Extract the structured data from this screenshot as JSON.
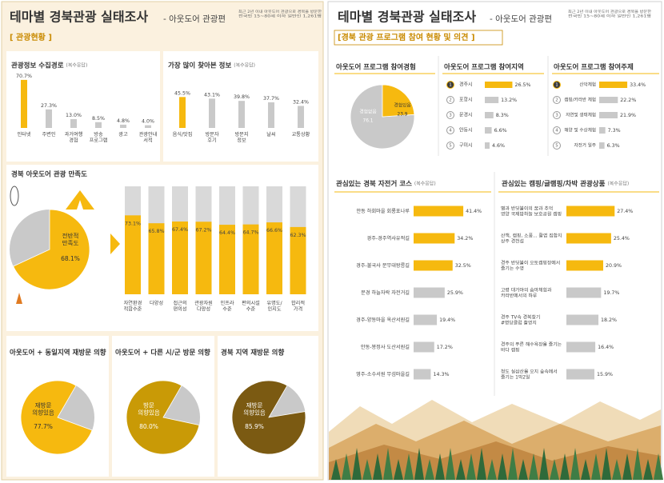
{
  "pages": [
    {
      "title": "테마별 경북관광 실태조사",
      "edition": "- 아웃도어 관광편",
      "note": "최근 2년 이내 아웃도어 관광으로 경북을 방문한\n전국민 15~80세 이하 일반인 1,261명",
      "section": "[ 관광현황 ]"
    },
    {
      "title": "테마별 경북관광 실태조사",
      "edition": "- 아웃도어 관광편",
      "note": "최근 2년 이내 아웃도어 관광으로 경북을 방문한\n전국민 15~80세 이하 일반인 1,261명",
      "section": "[경북 관광 프로그램 참여 현황 및 의견 ]"
    }
  ],
  "chart_data": [
    {
      "type": "bar",
      "title": "관광정보 수집경로",
      "note": "(복수응답)",
      "categories": [
        "인터넷",
        "주변인",
        "과거여행\n경험",
        "방송\n프로그램",
        "광고",
        "관광안내\n서적"
      ],
      "values": [
        70.7,
        27.3,
        13.0,
        8.5,
        4.8,
        4.0
      ],
      "value_labels": [
        "70.7%",
        "27.3%",
        "13.0%",
        "8.5%",
        "4.8%",
        "4.0%"
      ],
      "colors": [
        "#f6b90f",
        "#c9c9c9",
        "#c9c9c9",
        "#c9c9c9",
        "#c9c9c9",
        "#c9c9c9"
      ]
    },
    {
      "type": "bar",
      "title": "가장 많이 찾아본 정보",
      "note": "(복수응답)",
      "categories": [
        "음식/맛집",
        "방문자\n후기",
        "방문지\n정보",
        "날씨",
        "교통상황"
      ],
      "values": [
        45.5,
        43.1,
        39.8,
        37.7,
        32.4
      ],
      "value_labels": [
        "45.5%",
        "43.1%",
        "39.8%",
        "37.7%",
        "32.4%"
      ],
      "colors": [
        "#f6b90f",
        "#c9c9c9",
        "#c9c9c9",
        "#c9c9c9",
        "#c9c9c9"
      ]
    },
    {
      "type": "pie",
      "title": "경북 아웃도어 관광 만족도",
      "categories": [
        "전반적\n만족도"
      ],
      "values": [
        68.1
      ],
      "value_labels": [
        "68.1%"
      ],
      "colors": [
        "#f6b90f"
      ],
      "rest_color": "#c9c9c9"
    },
    {
      "type": "bar",
      "categories": [
        "자연환경\n적합수준",
        "다양성",
        "접근의\n편의성",
        "관광자원\n다양성",
        "인프라\n수준",
        "편의시설\n수준",
        "유명도/\n인지도",
        "합리적\n가격"
      ],
      "values": [
        73.1,
        65.8,
        67.4,
        67.2,
        64.4,
        64.7,
        66.6,
        62.3
      ],
      "value_labels": [
        "73.1%",
        "65.8%",
        "67.4%",
        "67.2%",
        "64.4%",
        "64.7%",
        "66.6%",
        "62.3%"
      ],
      "colors": [
        "#f6b90f",
        "#f6b90f",
        "#f6b90f",
        "#f6b90f",
        "#f6b90f",
        "#f6b90f",
        "#f6b90f",
        "#f6b90f"
      ],
      "background_color": "#d9d9d9"
    },
    {
      "type": "pie",
      "title": "아웃도어 + 동일지역 재방문 의향",
      "categories": [
        "재방문\n의향있음"
      ],
      "values": [
        77.7
      ],
      "value_labels": [
        "77.7%"
      ],
      "colors": [
        "#f6b90f"
      ],
      "rest_color": "#c9c9c9"
    },
    {
      "type": "pie",
      "title": "아웃도어 + 다른 시/군 방문 의향",
      "categories": [
        "방문\n의향있음"
      ],
      "values": [
        80.0
      ],
      "value_labels": [
        "80.0%"
      ],
      "colors": [
        "#c99a06"
      ],
      "rest_color": "#c9c9c9"
    },
    {
      "type": "pie",
      "title": "경북 지역 재방문 의향",
      "categories": [
        "재방문\n의향있음"
      ],
      "values": [
        85.9
      ],
      "value_labels": [
        "85.9%"
      ],
      "colors": [
        "#7b5a12"
      ],
      "rest_color": "#c9c9c9"
    },
    {
      "type": "pie",
      "title": "아웃도어 프로그램 참여경험",
      "categories": [
        "경험없음",
        "경험있음"
      ],
      "values": [
        76.1,
        23.9
      ],
      "colors": [
        "#c9c9c9",
        "#f6b90f"
      ]
    },
    {
      "type": "hbar",
      "title": "아웃도어 프로그램 참여지역",
      "ranks": [
        1,
        2,
        3,
        4,
        5
      ],
      "categories": [
        "경주시",
        "포항시",
        "문경시",
        "안동시",
        "구미시"
      ],
      "values": [
        26.5,
        13.2,
        8.3,
        6.6,
        4.6
      ],
      "value_labels": [
        "26.5%",
        "13.2%",
        "8.3%",
        "6.6%",
        "4.6%"
      ],
      "colors": [
        "#f6b90f",
        "#c9c9c9",
        "#c9c9c9",
        "#c9c9c9",
        "#c9c9c9"
      ]
    },
    {
      "type": "hbar",
      "title": "아웃도어 프로그램 참여주제",
      "ranks": [
        1,
        2,
        3,
        4,
        5
      ],
      "categories": [
        "산악체험",
        "캠핑/카라반 체험",
        "자연및 생태체험",
        "해양 및 수상체험",
        "자전거 일주"
      ],
      "values": [
        33.4,
        22.2,
        21.9,
        7.3,
        6.3
      ],
      "value_labels": [
        "33.4%",
        "22.2%",
        "21.9%",
        "7.3%",
        "6.3%"
      ],
      "colors": [
        "#f6b90f",
        "#c9c9c9",
        "#c9c9c9",
        "#c9c9c9",
        "#c9c9c9"
      ]
    },
    {
      "type": "hbar",
      "title": "관심있는 경북 자전거 코스",
      "note": "(복수응답)",
      "categories": [
        "안동 하회마을 회룡포나루",
        "경주-경주역사유적길",
        "경주-불국사 문무대왕릉길",
        "문경 하늘자락 자전거길",
        "경주-양동마을 옥산서원길",
        "안동-봉정사 도산서원길",
        "영주-소수서원 무섬마을길"
      ],
      "values": [
        41.4,
        34.2,
        32.5,
        25.9,
        19.4,
        17.2,
        14.3
      ],
      "value_labels": [
        "41.4%",
        "34.2%",
        "32.5%",
        "25.9%",
        "19.4%",
        "17.2%",
        "14.3%"
      ],
      "colors": [
        "#f6b90f",
        "#f6b90f",
        "#f6b90f",
        "#c9c9c9",
        "#c9c9c9",
        "#c9c9c9",
        "#c9c9c9"
      ]
    },
    {
      "type": "hbar",
      "title": "관심있는 캠핑/글램핑/차박 관광상품",
      "note": "(복수응답)",
      "categories": [
        "별과 반딧불이의 꿈과 추억\n영양 국제밤하늘 보호공원 캠핑",
        "산책, 캠핑, 소풍... 활엽 집합지\n상주 경천섬",
        "경주 반딧불이 오토캠핑장에서\n즐기는 수영",
        "고령 대가야의 숨마체험과\n카라반에서의 하루",
        "경주 TV속 경북찾기\n#명당클럽 촬영지",
        "경주의 푸른 해수욕장을 즐기는\n바다 캠핑",
        "청도 실삼산을 오지 숲속에서\n즐기는 1박2일"
      ],
      "values": [
        27.4,
        25.4,
        20.9,
        19.7,
        18.2,
        16.4,
        15.9
      ],
      "value_labels": [
        "27.4%",
        "25.4%",
        "20.9%",
        "19.7%",
        "18.2%",
        "16.4%",
        "15.9%"
      ],
      "colors": [
        "#f6b90f",
        "#f6b90f",
        "#f6b90f",
        "#c9c9c9",
        "#c9c9c9",
        "#c9c9c9",
        "#c9c9c9"
      ]
    }
  ]
}
